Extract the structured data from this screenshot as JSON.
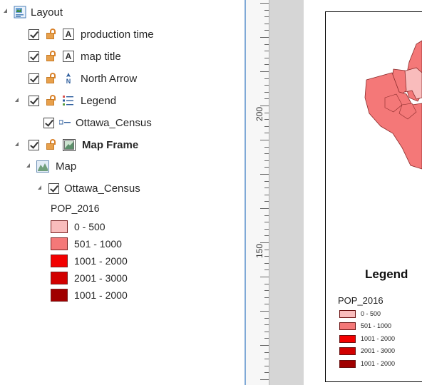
{
  "contents": {
    "layout": "Layout",
    "items": [
      {
        "label": "production time"
      },
      {
        "label": "map title"
      },
      {
        "label": "North Arrow"
      },
      {
        "label": "Legend"
      },
      {
        "label": "Ottawa_Census"
      },
      {
        "label": "Map Frame"
      },
      {
        "label": "Map"
      },
      {
        "label": "Ottawa_Census"
      }
    ],
    "field": "POP_2016",
    "classes": [
      {
        "label": "0 - 500",
        "color": "#f9bcbc"
      },
      {
        "label": "501 - 1000",
        "color": "#f47878"
      },
      {
        "label": "1001 - 2000",
        "color": "#f20000"
      },
      {
        "label": "2001 - 3000",
        "color": "#d20000"
      },
      {
        "label": "1001 - 2000",
        "color": "#a00000"
      }
    ]
  },
  "ruler": {
    "labels": [
      "200",
      "150"
    ]
  },
  "page": {
    "legend_title": "Legend",
    "field": "POP_2016",
    "classes": [
      {
        "label": "0 - 500",
        "color": "#f9bcbc"
      },
      {
        "label": "501 - 1000",
        "color": "#f47878"
      },
      {
        "label": "1001 - 2000",
        "color": "#f20000"
      },
      {
        "label": "2001 - 3000",
        "color": "#d20000"
      },
      {
        "label": "1001 - 2000",
        "color": "#a00000"
      }
    ]
  }
}
